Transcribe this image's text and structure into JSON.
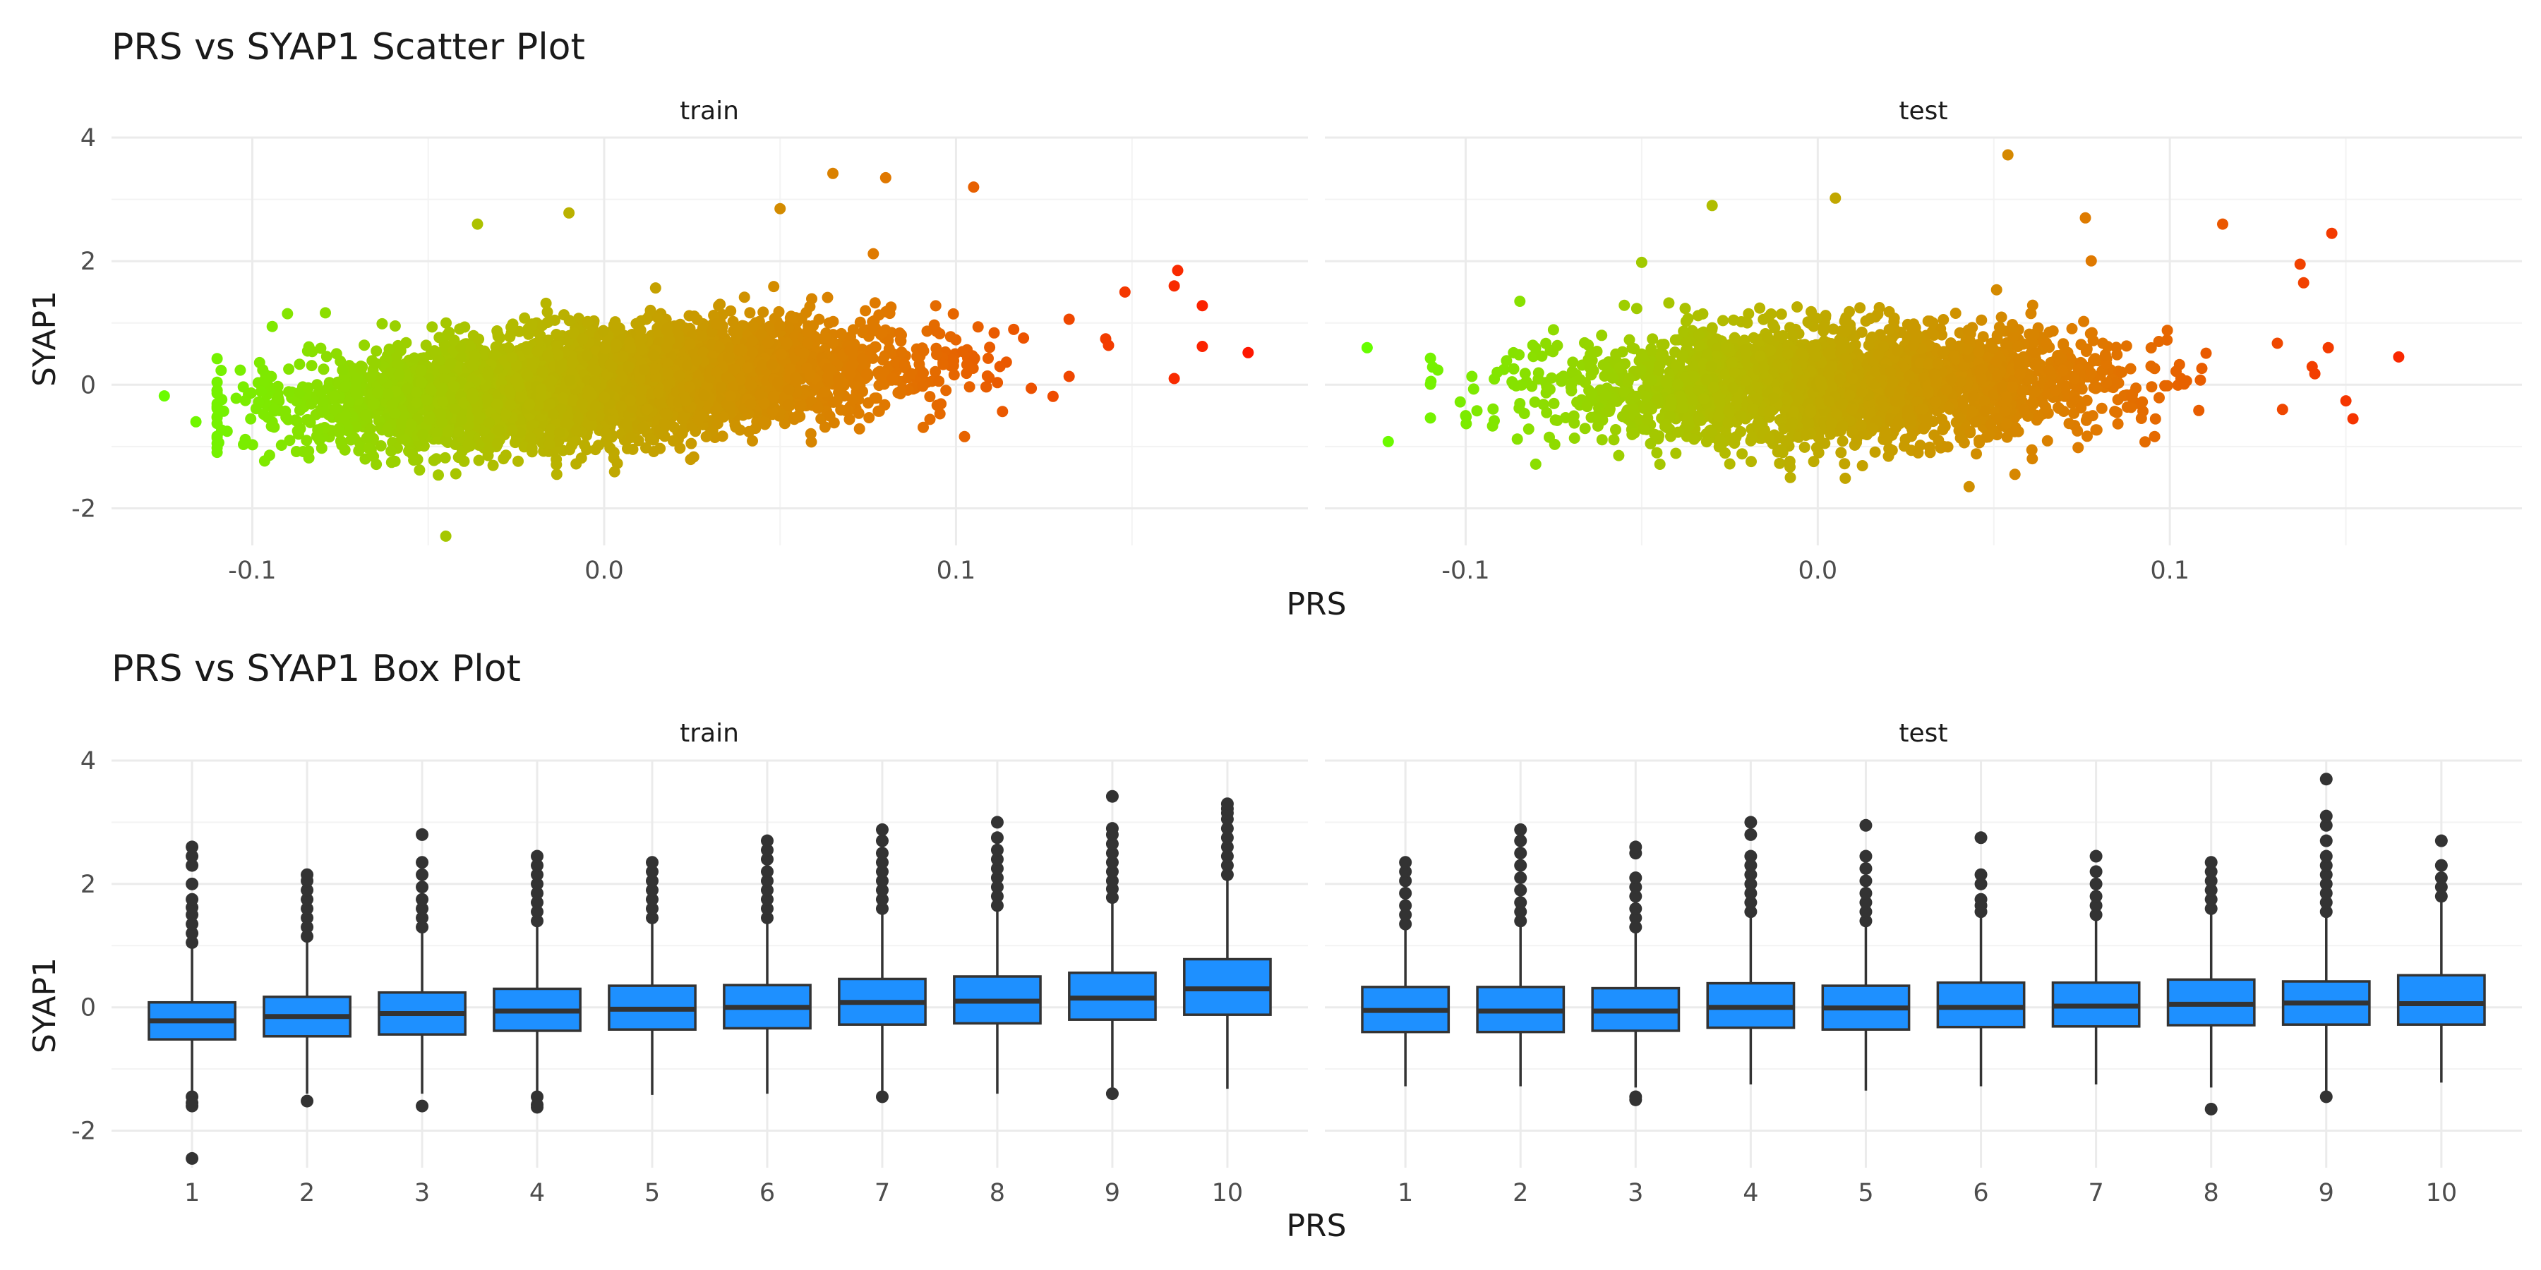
{
  "chart_data": [
    {
      "type": "scatter",
      "title": "PRS vs SYAP1 Scatter Plot",
      "xlabel": "PRS",
      "ylabel": "SYAP1",
      "facets": [
        "train",
        "test"
      ],
      "grid": true,
      "legend": "none",
      "point_color_scale": [
        "#66ff00",
        "#b4ba00",
        "#e07800",
        "#ff1500"
      ],
      "xlim": [
        -0.14,
        0.2
      ],
      "ylim": [
        -2.6,
        4.0
      ],
      "x_ticks": [
        -0.1,
        0.0,
        0.1
      ],
      "x_tick_labels": [
        "-0.1",
        "0.0",
        "0.1"
      ],
      "y_ticks": [
        -2,
        0,
        2,
        4
      ],
      "y_tick_labels": [
        "-2",
        "0",
        "2",
        "4"
      ],
      "cloud": {
        "train": {
          "x_mean": 0.0,
          "x_sd": 0.04,
          "y_slope": 4.2,
          "y_sd": 0.42,
          "n": 5000
        },
        "test": {
          "x_mean": 0.005,
          "x_sd": 0.038,
          "y_slope": 1.0,
          "y_sd": 0.45,
          "n": 2800
        }
      },
      "extreme_points": {
        "train": [
          {
            "x": -0.125,
            "y": -0.18
          },
          {
            "x": 0.183,
            "y": 0.52
          },
          {
            "x": 0.163,
            "y": 1.85
          },
          {
            "x": 0.162,
            "y": 1.6
          },
          {
            "x": 0.17,
            "y": 1.28
          },
          {
            "x": 0.162,
            "y": 0.1
          },
          {
            "x": 0.17,
            "y": 0.62
          },
          {
            "x": -0.045,
            "y": -2.45
          },
          {
            "x": 0.065,
            "y": 3.42
          },
          {
            "x": 0.105,
            "y": 3.2
          },
          {
            "x": -0.036,
            "y": 2.6
          },
          {
            "x": -0.01,
            "y": 2.78
          },
          {
            "x": -0.116,
            "y": -0.6
          },
          {
            "x": -0.11,
            "y": -0.95
          },
          {
            "x": -0.09,
            "y": 1.15
          },
          {
            "x": 0.08,
            "y": 3.35
          },
          {
            "x": 0.05,
            "y": 2.85
          },
          {
            "x": 0.148,
            "y": 1.5
          }
        ],
        "test": [
          {
            "x": -0.128,
            "y": 0.6
          },
          {
            "x": -0.122,
            "y": -0.92
          },
          {
            "x": 0.165,
            "y": 0.45
          },
          {
            "x": 0.152,
            "y": -0.55
          },
          {
            "x": 0.146,
            "y": 2.45
          },
          {
            "x": 0.145,
            "y": 0.6
          },
          {
            "x": 0.054,
            "y": 3.72
          },
          {
            "x": 0.043,
            "y": -1.65
          },
          {
            "x": -0.05,
            "y": 1.98
          },
          {
            "x": -0.03,
            "y": 2.9
          },
          {
            "x": 0.005,
            "y": 3.02
          },
          {
            "x": 0.076,
            "y": 2.7
          },
          {
            "x": 0.137,
            "y": 1.95
          },
          {
            "x": 0.138,
            "y": 1.65
          },
          {
            "x": -0.1,
            "y": -0.5
          },
          {
            "x": 0.115,
            "y": 2.6
          },
          {
            "x": 0.132,
            "y": -0.4
          },
          {
            "x": 0.056,
            "y": -1.45
          }
        ]
      }
    },
    {
      "type": "box",
      "title": "PRS vs SYAP1 Box Plot",
      "xlabel": "PRS",
      "ylabel": "SYAP1",
      "facets": [
        "train",
        "test"
      ],
      "grid": true,
      "legend": "none",
      "box_fill": "#1e90ff",
      "ylim": [
        -2.6,
        4.0
      ],
      "y_ticks": [
        -2,
        0,
        2,
        4
      ],
      "y_tick_labels": [
        "-2",
        "0",
        "2",
        "4"
      ],
      "categories": [
        "1",
        "2",
        "3",
        "4",
        "5",
        "6",
        "7",
        "8",
        "9",
        "10"
      ],
      "boxes": {
        "train": [
          {
            "q1": -0.52,
            "median": -0.22,
            "q3": 0.08,
            "lo": -1.4,
            "hi": 0.98,
            "out_hi": [
              1.05,
              1.2,
              1.35,
              1.5,
              1.62,
              1.75,
              2.0,
              2.3,
              2.45,
              2.6
            ],
            "out_lo": [
              -1.45,
              -1.55,
              -1.6,
              -2.45
            ]
          },
          {
            "q1": -0.47,
            "median": -0.15,
            "q3": 0.17,
            "lo": -1.4,
            "hi": 1.1,
            "out_hi": [
              1.15,
              1.3,
              1.45,
              1.6,
              1.75,
              1.9,
              2.05,
              2.15
            ],
            "out_lo": [
              -1.52
            ]
          },
          {
            "q1": -0.44,
            "median": -0.1,
            "q3": 0.24,
            "lo": -1.4,
            "hi": 1.25,
            "out_hi": [
              1.3,
              1.45,
              1.6,
              1.75,
              1.95,
              2.15,
              2.35,
              2.8
            ],
            "out_lo": [
              -1.6
            ]
          },
          {
            "q1": -0.38,
            "median": -0.06,
            "q3": 0.3,
            "lo": -1.38,
            "hi": 1.32,
            "out_hi": [
              1.4,
              1.55,
              1.7,
              1.85,
              2.0,
              2.15,
              2.3,
              2.45
            ],
            "out_lo": [
              -1.45,
              -1.58,
              -1.62
            ]
          },
          {
            "q1": -0.36,
            "median": -0.03,
            "q3": 0.35,
            "lo": -1.42,
            "hi": 1.4,
            "out_hi": [
              1.45,
              1.6,
              1.75,
              1.9,
              2.05,
              2.2,
              2.35
            ]
          },
          {
            "q1": -0.34,
            "median": 0.0,
            "q3": 0.36,
            "lo": -1.4,
            "hi": 1.4,
            "out_hi": [
              1.45,
              1.6,
              1.75,
              1.9,
              2.05,
              2.2,
              2.4,
              2.55,
              2.7
            ]
          },
          {
            "q1": -0.28,
            "median": 0.08,
            "q3": 0.46,
            "lo": -1.35,
            "hi": 1.55,
            "out_hi": [
              1.6,
              1.75,
              1.9,
              2.05,
              2.2,
              2.35,
              2.5,
              2.7,
              2.88
            ],
            "out_lo": [
              -1.45
            ]
          },
          {
            "q1": -0.26,
            "median": 0.1,
            "q3": 0.5,
            "lo": -1.4,
            "hi": 1.6,
            "out_hi": [
              1.65,
              1.8,
              1.95,
              2.1,
              2.25,
              2.4,
              2.55,
              2.75,
              3.0
            ]
          },
          {
            "q1": -0.2,
            "median": 0.15,
            "q3": 0.56,
            "lo": -1.3,
            "hi": 1.72,
            "out_hi": [
              1.78,
              1.92,
              2.05,
              2.2,
              2.35,
              2.5,
              2.65,
              2.8,
              2.9,
              3.42
            ],
            "out_lo": [
              -1.4
            ]
          },
          {
            "q1": -0.12,
            "median": 0.3,
            "q3": 0.78,
            "lo": -1.32,
            "hi": 2.1,
            "out_hi": [
              2.15,
              2.3,
              2.45,
              2.6,
              2.75,
              2.9,
              3.05,
              3.15,
              3.22,
              3.3
            ]
          }
        ],
        "test": [
          {
            "q1": -0.4,
            "median": -0.05,
            "q3": 0.33,
            "lo": -1.28,
            "hi": 1.3,
            "out_hi": [
              1.35,
              1.5,
              1.65,
              1.85,
              2.05,
              2.2,
              2.35
            ]
          },
          {
            "q1": -0.4,
            "median": -0.06,
            "q3": 0.33,
            "lo": -1.28,
            "hi": 1.32,
            "out_hi": [
              1.4,
              1.55,
              1.7,
              1.9,
              2.1,
              2.3,
              2.5,
              2.7,
              2.88
            ]
          },
          {
            "q1": -0.38,
            "median": -0.06,
            "q3": 0.31,
            "lo": -1.3,
            "hi": 1.25,
            "out_hi": [
              1.3,
              1.45,
              1.6,
              1.8,
              1.95,
              2.1,
              2.5,
              2.6
            ],
            "out_lo": [
              -1.45,
              -1.5
            ]
          },
          {
            "q1": -0.33,
            "median": 0.0,
            "q3": 0.39,
            "lo": -1.25,
            "hi": 1.5,
            "out_hi": [
              1.55,
              1.7,
              1.85,
              2.0,
              2.15,
              2.3,
              2.45,
              2.8,
              3.0
            ]
          },
          {
            "q1": -0.36,
            "median": -0.01,
            "q3": 0.35,
            "lo": -1.35,
            "hi": 1.32,
            "out_hi": [
              1.4,
              1.55,
              1.7,
              1.85,
              2.05,
              2.25,
              2.45,
              2.95
            ]
          },
          {
            "q1": -0.32,
            "median": 0.0,
            "q3": 0.4,
            "lo": -1.28,
            "hi": 1.45,
            "out_hi": [
              1.55,
              1.65,
              1.75,
              2.0,
              2.15,
              2.75
            ]
          },
          {
            "q1": -0.31,
            "median": 0.02,
            "q3": 0.4,
            "lo": -1.25,
            "hi": 1.45,
            "out_hi": [
              1.5,
              1.65,
              1.8,
              2.0,
              2.2,
              2.45
            ]
          },
          {
            "q1": -0.29,
            "median": 0.05,
            "q3": 0.45,
            "lo": -1.3,
            "hi": 1.55,
            "out_hi": [
              1.6,
              1.75,
              1.9,
              2.05,
              2.2,
              2.35
            ],
            "out_lo": [
              -1.65
            ]
          },
          {
            "q1": -0.28,
            "median": 0.07,
            "q3": 0.42,
            "lo": -1.35,
            "hi": 1.5,
            "out_hi": [
              1.55,
              1.7,
              1.85,
              2.0,
              2.15,
              2.3,
              2.45,
              2.7,
              2.95,
              3.1,
              3.7
            ],
            "out_lo": [
              -1.45
            ]
          },
          {
            "q1": -0.28,
            "median": 0.06,
            "q3": 0.52,
            "lo": -1.22,
            "hi": 1.72,
            "out_hi": [
              1.8,
              1.95,
              2.1,
              2.3,
              2.7
            ]
          }
        ]
      }
    }
  ]
}
